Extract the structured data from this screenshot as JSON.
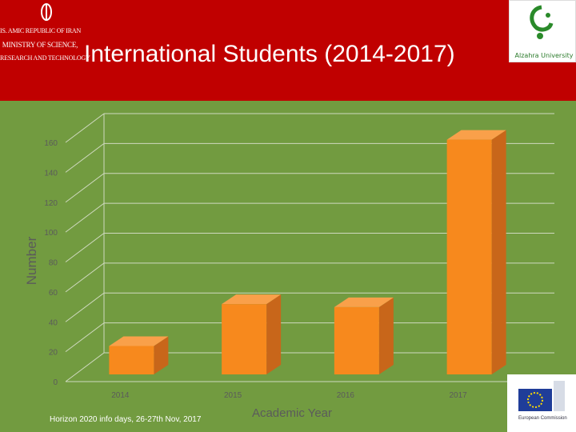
{
  "header": {
    "ministry_lines": [
      "IS. AMIC REPUBLIC OF IRAN",
      "MINISTRY OF SCIENCE,",
      "RESEARCH AND TECHNOLOGY"
    ],
    "title": "International Students (2014-2017)",
    "right_logo_text": "Alzahra University"
  },
  "footer": {
    "text": "Horizon 2020 info days, 26-27th Nov, 2017",
    "eu_logo_text": "European Commission"
  },
  "colors": {
    "header_bg": "#c00000",
    "plot_bg": "#729b40",
    "bar_front": "#f7891d",
    "bar_side": "#c8661a",
    "bar_top": "#f9a04a"
  },
  "chart_data": {
    "type": "bar",
    "categories": [
      "2014",
      "2015",
      "2016",
      "2017"
    ],
    "values": [
      19,
      47,
      45,
      157
    ],
    "xlabel": "Academic Year",
    "ylabel": "Number",
    "ylim": [
      0,
      160
    ],
    "yticks": [
      "0",
      "20",
      "40",
      "60",
      "80",
      "100",
      "120",
      "140",
      "160"
    ],
    "grid": true,
    "style": "3d-column"
  }
}
